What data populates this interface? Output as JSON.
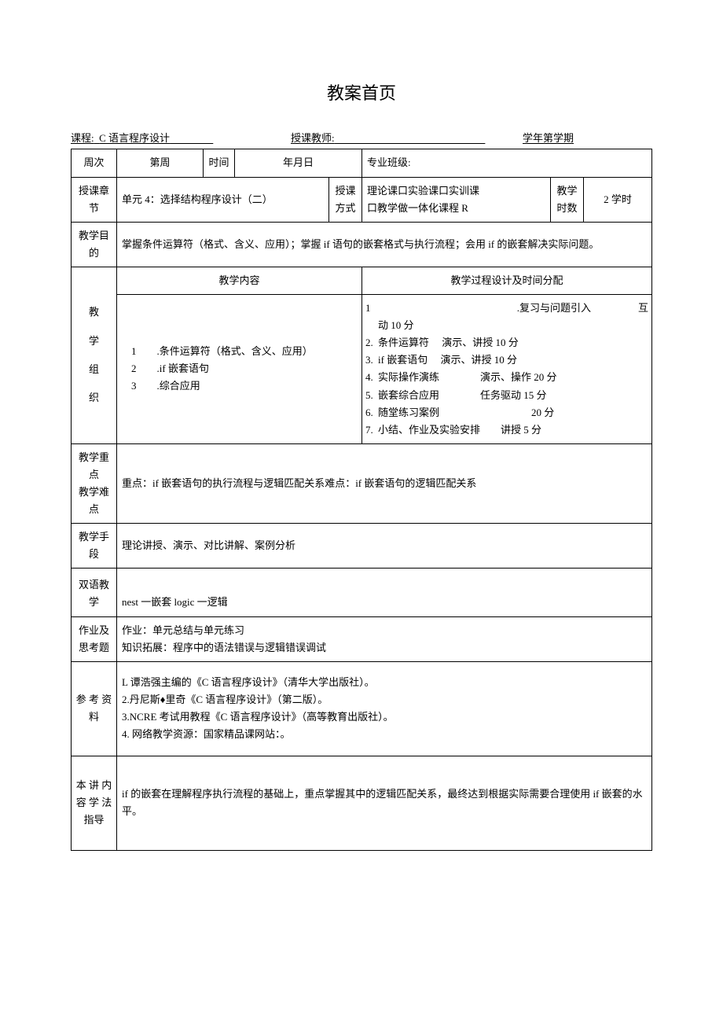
{
  "title": "教案首页",
  "header": {
    "course_label": "课程:",
    "course_value": "C 语言程序设计",
    "teacher_label": "授课教师:",
    "teacher_value": "",
    "term_label": "学年第学期"
  },
  "row_week": {
    "week_label": "周次",
    "week_value": "第周",
    "time_label": "时间",
    "time_value": "年月日",
    "class_label": "专业班级:",
    "class_value": ""
  },
  "row_chapter": {
    "chapter_label": "授课章节",
    "chapter_value": "单元 4：选择结构程序设计（二）",
    "mode_label": "授课方式",
    "mode_value": "理论课口实验课口实训课\n口教学做一体化课程 R",
    "hours_label": "教学时数",
    "hours_value": "2 学时"
  },
  "row_goal": {
    "label": "教学目的",
    "content": "掌握条件运算符（格式、含义、应用）；掌握 if 语句的嵌套格式与执行流程；会用 if 的嵌套解决实际问题。"
  },
  "row_org": {
    "label": "教\n\n学\n\n组\n\n织",
    "content_header": "教学内容",
    "process_header": "教学过程设计及时间分配",
    "content_items": [
      "1　　.条件运算符（格式、含义、应用）",
      "2　　.if 嵌套语句",
      "3　　.综合应用"
    ],
    "process_items": [
      {
        "n": "1",
        "txt": ".复习与问题引入",
        "time": "互",
        "wide": true
      },
      {
        "n": "",
        "txt": "动 10 分",
        "time": ""
      },
      {
        "n": "2.",
        "txt": "条件运算符　 演示、讲授 10 分",
        "time": ""
      },
      {
        "n": "3.",
        "txt": "if 嵌套语句　 演示、讲授 10 分",
        "time": ""
      },
      {
        "n": "4.",
        "txt": "实际操作演练　　　　演示、操作 20 分",
        "time": ""
      },
      {
        "n": "5.",
        "txt": "嵌套综合应用　　　　任务驱动 15 分",
        "time": ""
      },
      {
        "n": "6.",
        "txt": "随堂练习案例　　　　　　　　　20 分",
        "time": ""
      },
      {
        "n": "7.",
        "txt": "小结、作业及实验安排　　讲授 5 分",
        "time": ""
      }
    ]
  },
  "row_keypoint": {
    "label": "教学重点\n教学难点",
    "content": "重点：if 嵌套语句的执行流程与逻辑匹配关系难点：if 嵌套语句的逻辑匹配关系"
  },
  "row_method": {
    "label": "教学手段",
    "content": "理论讲授、演示、对比讲解、案例分析"
  },
  "row_bilingual": {
    "label": "双语教学",
    "content": "nest 一嵌套 logic 一逻辑"
  },
  "row_homework": {
    "label": "作业及思考题",
    "lines": [
      "作业：单元总结与单元练习",
      "知识拓展：程序中的语法错误与逻辑错误调试"
    ]
  },
  "row_reference": {
    "label": "参 考 资料",
    "lines": [
      "L 谭浩强主编的《C 语言程序设计》（清华大学出版社）。",
      "2.丹尼斯♦里奇《C 语言程序设计》（第二版）。",
      "3.NCRE 考试用教程《C 语言程序设计》（高等教育出版社）。",
      "4. 网络教学资源：国家精品课网站：。"
    ]
  },
  "row_guide": {
    "label": "本 讲 内容 学 法指导",
    "content": "if 的嵌套在理解程序执行流程的基础上，重点掌握其中的逻辑匹配关系，最终达到根据实际需要合理使用 if 嵌套的水平。"
  },
  "colors": {
    "text": "#000000",
    "background": "#ffffff",
    "border": "#000000"
  },
  "typography": {
    "title_fontsize": 22,
    "body_fontsize": 13,
    "font_family": "SimSun"
  }
}
